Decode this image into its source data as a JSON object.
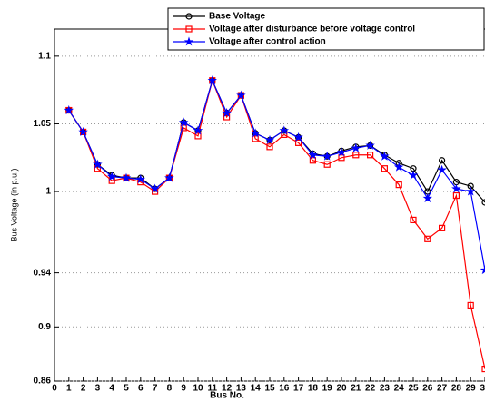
{
  "chart_data": {
    "type": "line",
    "x_label": "Bus No.",
    "y_label": "Bus Voltage (in p.u.)",
    "x": [
      1,
      2,
      3,
      4,
      5,
      6,
      7,
      8,
      9,
      10,
      11,
      12,
      13,
      14,
      15,
      16,
      17,
      18,
      19,
      20,
      21,
      22,
      23,
      24,
      25,
      26,
      27,
      28,
      29,
      30
    ],
    "series": [
      {
        "name": "Base Voltage",
        "color": "#000000",
        "marker": "circle",
        "values": [
          1.06,
          1.044,
          1.02,
          1.012,
          1.01,
          1.01,
          1.002,
          1.01,
          1.051,
          1.045,
          1.082,
          1.058,
          1.071,
          1.043,
          1.038,
          1.045,
          1.04,
          1.028,
          1.026,
          1.03,
          1.033,
          1.034,
          1.027,
          1.021,
          1.017,
          1.0,
          1.023,
          1.007,
          1.004,
          0.992
        ]
      },
      {
        "name": "Voltage after disturbance before voltage control",
        "color": "#ff0000",
        "marker": "square",
        "values": [
          1.06,
          1.044,
          1.017,
          1.008,
          1.01,
          1.007,
          1.0,
          1.01,
          1.047,
          1.041,
          1.082,
          1.055,
          1.071,
          1.039,
          1.033,
          1.042,
          1.036,
          1.023,
          1.02,
          1.025,
          1.027,
          1.027,
          1.017,
          1.005,
          0.979,
          0.965,
          0.973,
          0.997,
          0.916,
          0.869
        ]
      },
      {
        "name": "Voltage after control action",
        "color": "#0000ff",
        "marker": "star",
        "values": [
          1.06,
          1.044,
          1.02,
          1.011,
          1.01,
          1.009,
          1.002,
          1.01,
          1.051,
          1.045,
          1.082,
          1.058,
          1.071,
          1.043,
          1.038,
          1.045,
          1.04,
          1.027,
          1.026,
          1.029,
          1.032,
          1.034,
          1.026,
          1.018,
          1.012,
          0.995,
          1.016,
          1.002,
          1.0,
          0.942
        ]
      }
    ],
    "xlim": [
      0,
      30
    ],
    "xticks": [
      0,
      1,
      2,
      3,
      4,
      5,
      6,
      7,
      8,
      9,
      10,
      11,
      12,
      13,
      14,
      15,
      16,
      17,
      18,
      19,
      20,
      21,
      22,
      23,
      24,
      25,
      26,
      27,
      28,
      29,
      30
    ],
    "ylim": [
      0.86,
      1.12
    ],
    "yticks": [
      0.86,
      0.9,
      0.94,
      1,
      1.05,
      1.1
    ],
    "grid": true
  }
}
